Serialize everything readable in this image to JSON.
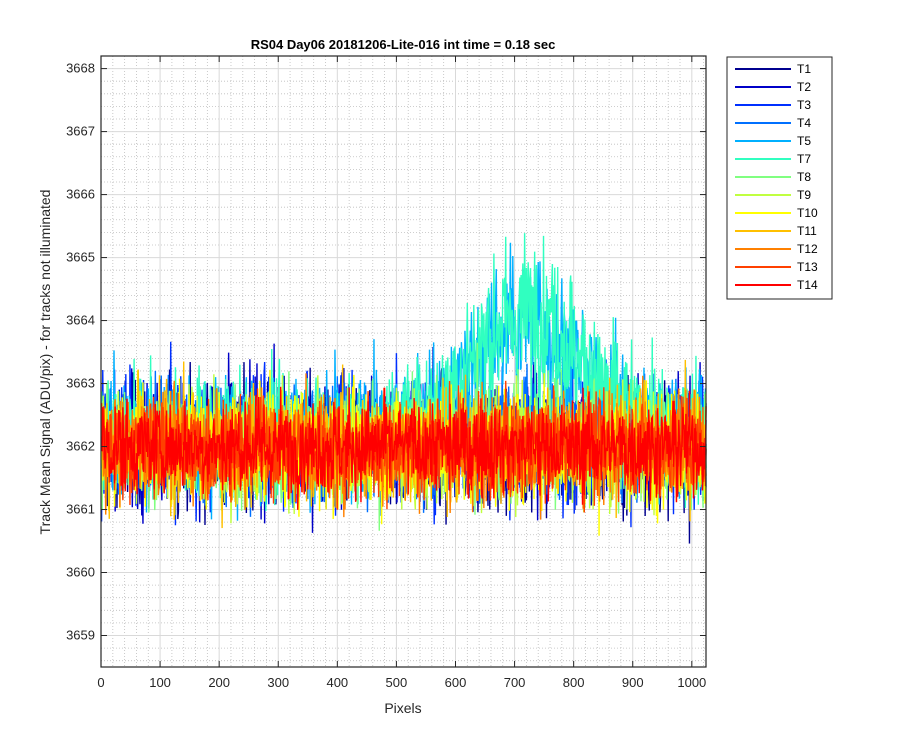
{
  "chart_data": {
    "type": "line",
    "title": "RS04 Day06 20181206-Lite-016 int time = 0.18 sec",
    "xlabel": "Pixels",
    "ylabel": "Track Mean Signal (ADU/pix) - for tracks not illuminated",
    "xlim": [
      0,
      1024
    ],
    "ylim": [
      3658.5,
      3668.2
    ],
    "x_ticks": [
      "0",
      "100",
      "200",
      "300",
      "400",
      "500",
      "600",
      "700",
      "800",
      "900",
      "1000"
    ],
    "y_ticks": [
      "3659",
      "3660",
      "3661",
      "3662",
      "3663",
      "3664",
      "3665",
      "3666",
      "3667",
      "3668"
    ],
    "grid": true,
    "minor_grid": true,
    "legend_location": "outside-right-top",
    "series": [
      {
        "name": "T1",
        "color": "#00008f",
        "base": 3662.0,
        "spread": 1.25,
        "bump": 0.0
      },
      {
        "name": "T2",
        "color": "#0000c8",
        "base": 3662.1,
        "spread": 1.25,
        "bump": 0.0
      },
      {
        "name": "T3",
        "color": "#0030ff",
        "base": 3662.1,
        "spread": 1.25,
        "bump": 0.0
      },
      {
        "name": "T4",
        "color": "#0070ff",
        "base": 3662.1,
        "spread": 1.2,
        "bump": 0.3
      },
      {
        "name": "T5",
        "color": "#00b0ff",
        "base": 3662.2,
        "spread": 1.2,
        "bump": 2.6
      },
      {
        "name": "T7",
        "color": "#30ffc0",
        "base": 3662.2,
        "spread": 1.2,
        "bump": 2.8
      },
      {
        "name": "T8",
        "color": "#80ff80",
        "base": 3662.0,
        "spread": 1.15,
        "bump": 0.2
      },
      {
        "name": "T9",
        "color": "#c0ff40",
        "base": 3662.0,
        "spread": 1.15,
        "bump": 0.0
      },
      {
        "name": "T10",
        "color": "#ffff00",
        "base": 3662.0,
        "spread": 1.15,
        "bump": 0.0
      },
      {
        "name": "T11",
        "color": "#ffc000",
        "base": 3662.0,
        "spread": 1.1,
        "bump": 0.0
      },
      {
        "name": "T12",
        "color": "#ff8000",
        "base": 3662.0,
        "spread": 1.05,
        "bump": 0.0
      },
      {
        "name": "T13",
        "color": "#ff4000",
        "base": 3662.0,
        "spread": 1.0,
        "bump": 0.0
      },
      {
        "name": "T14",
        "color": "#ff0000",
        "base": 3662.0,
        "spread": 0.95,
        "bump": 0.0
      }
    ]
  }
}
